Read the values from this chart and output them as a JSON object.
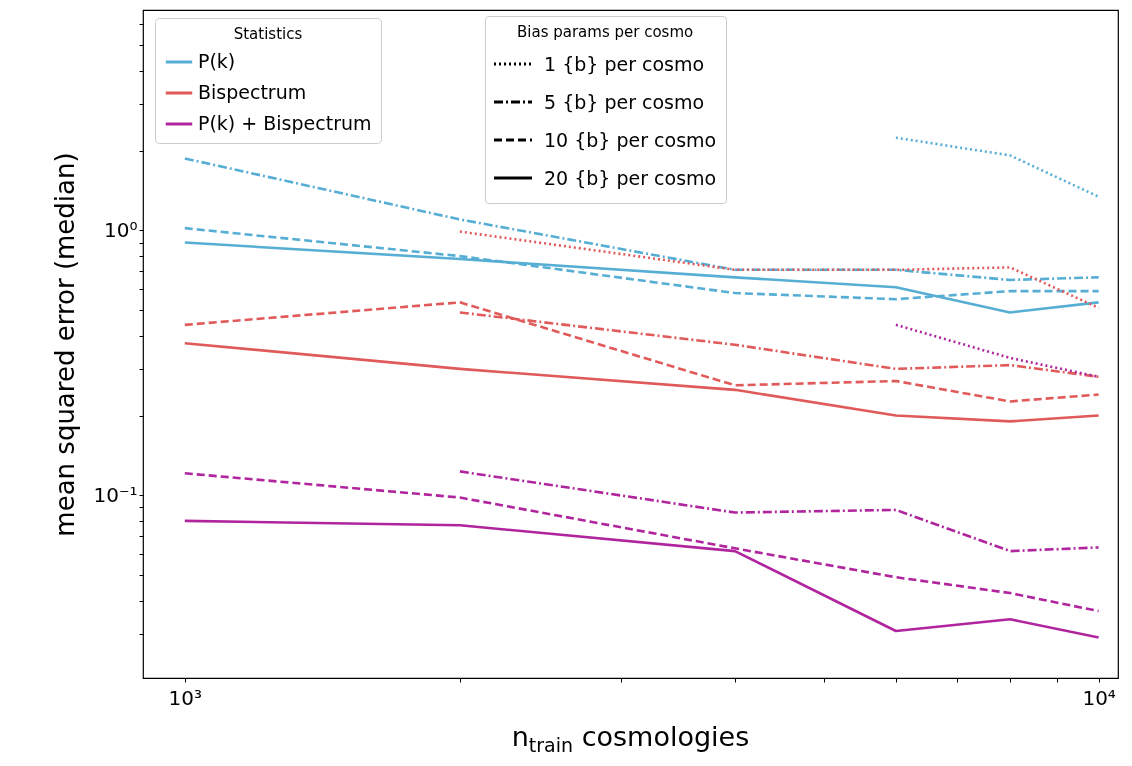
{
  "chart_data": {
    "type": "line",
    "xlabel": "n$_{train}$ cosmologies",
    "ylabel": "mean squared error (median)",
    "legend_title": "Statistics",
    "legend": "top left",
    "log": "xy",
    "grid": false,
    "annotations": [
      "Bias params per cosmo",
      "1 {b} per cosmo",
      "5 {b} per cosmo",
      "10 {b} per cosmo",
      "20 {b} per cosmo"
    ],
    "xlim": [
      900,
      10500
    ],
    "ylim": [
      0.0204,
      6.8
    ],
    "xticks": [
      {
        "value": 1000,
        "label": "10³"
      },
      {
        "value": 2000,
        "label": null
      },
      {
        "value": 3000,
        "label": null
      },
      {
        "value": 4000,
        "label": null
      },
      {
        "value": 5000,
        "label": null
      },
      {
        "value": 6000,
        "label": null
      },
      {
        "value": 7000,
        "label": null
      },
      {
        "value": 8000,
        "label": null
      },
      {
        "value": 9000,
        "label": null
      },
      {
        "value": 10000,
        "label": "10⁴"
      }
    ],
    "yticks": [
      {
        "value": 0.03,
        "label": null
      },
      {
        "value": 0.04,
        "label": null
      },
      {
        "value": 0.05,
        "label": null
      },
      {
        "value": 0.06,
        "label": null
      },
      {
        "value": 0.07,
        "label": null
      },
      {
        "value": 0.08,
        "label": null
      },
      {
        "value": 0.09,
        "label": null
      },
      {
        "value": 0.1,
        "label": "10⁻¹"
      },
      {
        "value": 0.2,
        "label": null
      },
      {
        "value": 0.3,
        "label": null
      },
      {
        "value": 0.4,
        "label": null
      },
      {
        "value": 0.5,
        "label": null
      },
      {
        "value": 0.6,
        "label": null
      },
      {
        "value": 0.7,
        "label": null
      },
      {
        "value": 0.8,
        "label": null
      },
      {
        "value": 0.9,
        "label": null
      },
      {
        "value": 1,
        "label": "10⁰"
      },
      {
        "value": 2,
        "label": null
      },
      {
        "value": 3,
        "label": null
      },
      {
        "value": 4,
        "label": null
      },
      {
        "value": 5,
        "label": null
      },
      {
        "value": 6,
        "label": null
      }
    ],
    "series": [
      {
        "line_style": "dotted",
        "color": "#56aed4",
        "x": [
          6000,
          8000,
          10000
        ],
        "values": [
          2.24,
          1.92,
          1.34
        ]
      },
      {
        "line_style": "dashdot",
        "color": "#56aed4",
        "x": [
          1000,
          2000,
          4000,
          6000,
          8000,
          10000
        ],
        "values": [
          1.87,
          1.1,
          0.71,
          0.71,
          0.65,
          0.665
        ]
      },
      {
        "line_style": "dashed",
        "color": "#56aed4",
        "x": [
          1000,
          2000,
          4000,
          6000,
          8000,
          10000
        ],
        "values": [
          1.02,
          0.8,
          0.58,
          0.55,
          0.59,
          0.59
        ]
      },
      {
        "name": "P(k)",
        "line_style": "solid",
        "color": "#56aed4",
        "x": [
          1000,
          2000,
          4000,
          6000,
          8000,
          10000
        ],
        "values": [
          0.9,
          0.78,
          0.665,
          0.61,
          0.49,
          0.535
        ]
      },
      {
        "line_style": "dotted",
        "color": "#e05a5a",
        "x": [
          2000,
          4000,
          6000,
          8000,
          10000
        ],
        "values": [
          0.99,
          0.71,
          0.71,
          0.725,
          0.51
        ]
      },
      {
        "line_style": "dashdot",
        "color": "#e05a5a",
        "x": [
          2000,
          4000,
          6000,
          8000,
          10000
        ],
        "values": [
          0.49,
          0.37,
          0.3,
          0.31,
          0.28
        ]
      },
      {
        "line_style": "dashed",
        "color": "#e05a5a",
        "x": [
          1000,
          2000,
          4000,
          6000,
          8000,
          10000
        ],
        "values": [
          0.44,
          0.535,
          0.26,
          0.27,
          0.226,
          0.24
        ]
      },
      {
        "name": "Bispectrum",
        "line_style": "solid",
        "color": "#e05a5a",
        "x": [
          1000,
          2000,
          4000,
          6000,
          8000,
          10000
        ],
        "values": [
          0.375,
          0.3,
          0.25,
          0.2,
          0.19,
          0.2
        ]
      },
      {
        "line_style": "dotted",
        "color": "#b0259e",
        "x": [
          6000,
          8000,
          10000
        ],
        "values": [
          0.44,
          0.33,
          0.28
        ]
      },
      {
        "line_style": "dashdot",
        "color": "#b0259e",
        "x": [
          2000,
          4000,
          6000,
          8000,
          10000
        ],
        "values": [
          0.123,
          0.086,
          0.088,
          0.0615,
          0.0635
        ]
      },
      {
        "line_style": "dashed",
        "color": "#b0259e",
        "x": [
          1000,
          2000,
          4000,
          6000,
          8000,
          10000
        ],
        "values": [
          0.121,
          0.098,
          0.063,
          0.049,
          0.0427,
          0.0365
        ]
      },
      {
        "name": "P(k) + Bispectrum",
        "line_style": "solid",
        "color": "#b0259e",
        "x": [
          1000,
          2000,
          4000,
          6000,
          8000,
          10000
        ],
        "values": [
          0.08,
          0.077,
          0.0615,
          0.0307,
          0.034,
          0.029
        ]
      }
    ]
  }
}
